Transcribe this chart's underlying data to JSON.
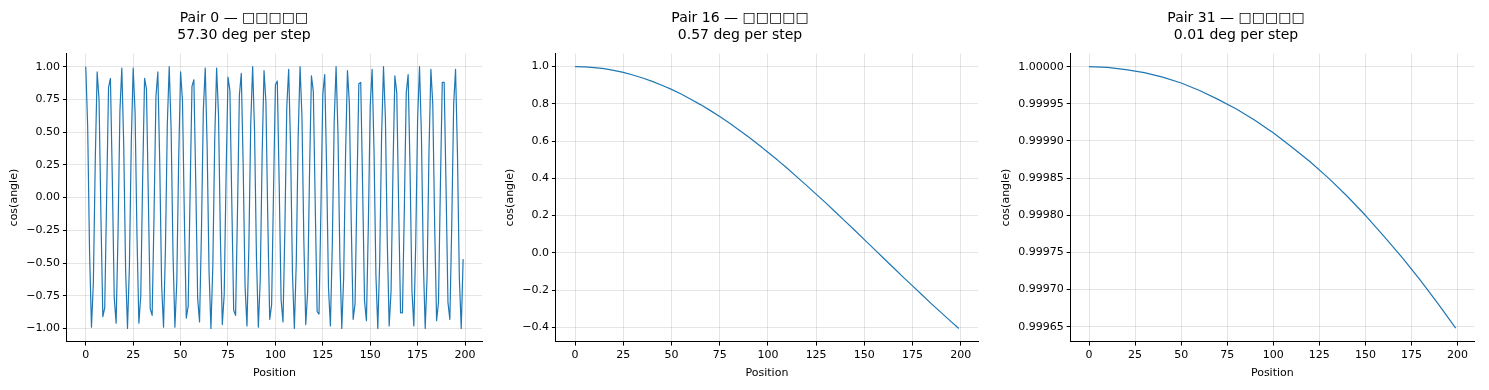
{
  "chart_data": [
    {
      "type": "line",
      "title": "Pair 0 — □□□□□",
      "subtitle": "57.30 deg per step",
      "xlabel": "Position",
      "ylabel": "cos(angle)",
      "color": "#1f77b4",
      "grid": true,
      "xlim": [
        -9.95,
        208.95
      ],
      "ylim": [
        -1.1,
        1.1
      ],
      "xticks": [
        0,
        25,
        50,
        75,
        100,
        125,
        150,
        175,
        200
      ],
      "yticks": [
        {
          "value": -1,
          "label": "−1.00"
        },
        {
          "value": -0.75,
          "label": "−0.75"
        },
        {
          "value": -0.5,
          "label": "−0.50"
        },
        {
          "value": -0.25,
          "label": "−0.25"
        },
        {
          "value": 0,
          "label": "0.00"
        },
        {
          "value": 0.25,
          "label": "0.25"
        },
        {
          "value": 0.5,
          "label": "0.50"
        },
        {
          "value": 0.75,
          "label": "0.75"
        },
        {
          "value": 1,
          "label": "1.00"
        }
      ],
      "x": [
        0,
        1,
        2,
        3,
        4,
        5,
        6,
        7,
        8,
        9,
        10,
        11,
        12,
        13,
        14,
        15,
        16,
        17,
        18,
        19,
        20,
        21,
        22,
        23,
        24,
        25,
        26,
        27,
        28,
        29,
        30,
        31,
        32,
        33,
        34,
        35,
        36,
        37,
        38,
        39,
        40,
        41,
        42,
        43,
        44,
        45,
        46,
        47,
        48,
        49,
        50,
        51,
        52,
        53,
        54,
        55,
        56,
        57,
        58,
        59,
        60,
        61,
        62,
        63,
        64,
        65,
        66,
        67,
        68,
        69,
        70,
        71,
        72,
        73,
        74,
        75,
        76,
        77,
        78,
        79,
        80,
        81,
        82,
        83,
        84,
        85,
        86,
        87,
        88,
        89,
        90,
        91,
        92,
        93,
        94,
        95,
        96,
        97,
        98,
        99,
        100,
        101,
        102,
        103,
        104,
        105,
        106,
        107,
        108,
        109,
        110,
        111,
        112,
        113,
        114,
        115,
        116,
        117,
        118,
        119,
        120,
        121,
        122,
        123,
        124,
        125,
        126,
        127,
        128,
        129,
        130,
        131,
        132,
        133,
        134,
        135,
        136,
        137,
        138,
        139,
        140,
        141,
        142,
        143,
        144,
        145,
        146,
        147,
        148,
        149,
        150,
        151,
        152,
        153,
        154,
        155,
        156,
        157,
        158,
        159,
        160,
        161,
        162,
        163,
        164,
        165,
        166,
        167,
        168,
        169,
        170,
        171,
        172,
        173,
        174,
        175,
        176,
        177,
        178,
        179,
        180,
        181,
        182,
        183,
        184,
        185,
        186,
        187,
        188,
        189,
        190,
        191,
        192,
        193,
        194,
        195,
        196,
        197,
        198,
        199
      ],
      "values": [
        1.0,
        0.54,
        -0.42,
        -0.99,
        -0.65,
        0.28,
        0.96,
        0.75,
        -0.15,
        -0.91,
        -0.84,
        0.0,
        0.84,
        0.91,
        0.14,
        -0.76,
        -0.96,
        -0.28,
        0.66,
        0.99,
        0.41,
        -0.55,
        -1.0,
        -0.53,
        0.42,
        0.99,
        0.65,
        -0.29,
        -0.96,
        -0.75,
        0.15,
        0.91,
        0.83,
        -0.01,
        -0.85,
        -0.9,
        -0.13,
        0.77,
        0.96,
        0.27,
        -0.67,
        -0.99,
        -0.4,
        0.56,
        1.0,
        0.53,
        -0.43,
        -0.99,
        -0.64,
        0.3,
        0.96,
        0.74,
        -0.16,
        -0.92,
        -0.83,
        0.02,
        0.85,
        0.9,
        0.12,
        -0.77,
        -0.95,
        -0.26,
        0.67,
        0.99,
        0.39,
        -0.56,
        -1.0,
        -0.52,
        0.44,
        0.99,
        0.63,
        -0.31,
        -0.97,
        -0.74,
        0.17,
        0.92,
        0.82,
        -0.03,
        -0.86,
        -0.9,
        -0.11,
        0.78,
        0.95,
        0.25,
        -0.68,
        -0.98,
        -0.38,
        0.57,
        1.0,
        0.51,
        -0.45,
        -0.99,
        -0.63,
        0.32,
        0.97,
        0.73,
        -0.18,
        -0.93,
        -0.82,
        0.04,
        0.86,
        0.89,
        0.1,
        -0.78,
        -0.95,
        -0.24,
        0.69,
        0.98,
        0.38,
        -0.58,
        -1.0,
        -0.5,
        0.46,
        1.0,
        0.62,
        -0.33,
        -0.97,
        -0.72,
        0.19,
        0.93,
        0.81,
        -0.05,
        -0.87,
        -0.89,
        -0.09,
        0.79,
        0.94,
        0.23,
        -0.69,
        -0.98,
        -0.37,
        0.58,
        1.0,
        0.49,
        -0.46,
        -1.0,
        -0.61,
        0.33,
        0.97,
        0.72,
        -0.2,
        -0.93,
        -0.81,
        0.06,
        0.87,
        0.88,
        0.08,
        -0.79,
        -0.94,
        -0.22,
        0.7,
        0.98,
        0.36,
        -0.59,
        -1.0,
        -0.49,
        0.47,
        1.0,
        0.61,
        -0.34,
        -0.98,
        -0.71,
        0.21,
        0.93,
        0.8,
        -0.07,
        -0.88,
        -0.88,
        -0.08,
        0.8,
        0.94,
        0.22,
        -0.71,
        -0.98,
        -0.35,
        0.6,
        1.0,
        0.48,
        -0.48,
        -1.0,
        -0.6,
        0.35,
        0.98,
        0.71,
        -0.22,
        -0.94,
        -0.8,
        0.08,
        0.88,
        0.88,
        0.07,
        -0.8,
        -0.93,
        -0.21,
        0.71,
        0.98,
        0.34,
        -0.61,
        -1.0,
        -0.47
      ]
    },
    {
      "type": "line",
      "title": "Pair 16 — □□□□□",
      "subtitle": "0.57 deg per step",
      "xlabel": "Position",
      "ylabel": "cos(angle)",
      "color": "#1f77b4",
      "grid": true,
      "xlim": [
        -9.95,
        208.95
      ],
      "ylim": [
        -0.477,
        1.07
      ],
      "xticks": [
        0,
        25,
        50,
        75,
        100,
        125,
        150,
        175,
        200
      ],
      "yticks": [
        {
          "value": -0.4,
          "label": "−0.4"
        },
        {
          "value": -0.2,
          "label": "−0.2"
        },
        {
          "value": 0,
          "label": "0.0"
        },
        0.2,
        0.4,
        0.6,
        0.8,
        {
          "value": 1,
          "label": "1.0"
        }
      ],
      "x": [
        0,
        5,
        10,
        15,
        20,
        25,
        30,
        35,
        40,
        45,
        50,
        55,
        60,
        65,
        70,
        75,
        80,
        85,
        90,
        95,
        100,
        105,
        110,
        115,
        120,
        125,
        130,
        135,
        140,
        145,
        150,
        155,
        160,
        165,
        170,
        175,
        180,
        185,
        190,
        195,
        199
      ],
      "values": [
        1,
        0.999,
        0.995,
        0.989,
        0.98,
        0.969,
        0.955,
        0.939,
        0.921,
        0.9,
        0.878,
        0.853,
        0.825,
        0.796,
        0.765,
        0.732,
        0.697,
        0.66,
        0.622,
        0.582,
        0.54,
        0.498,
        0.454,
        0.408,
        0.362,
        0.315,
        0.268,
        0.219,
        0.17,
        0.121,
        0.071,
        0.021,
        -0.029,
        -0.079,
        -0.129,
        -0.178,
        -0.227,
        -0.276,
        -0.323,
        -0.37,
        -0.407
      ]
    },
    {
      "type": "line",
      "title": "Pair 31 — □□□□□",
      "subtitle": "0.01 deg per step",
      "xlabel": "Position",
      "ylabel": "cos(angle)",
      "color": "#1f77b4",
      "grid": true,
      "xlim": [
        -9.95,
        208.95
      ],
      "ylim": [
        0.99963,
        1.0000176
      ],
      "xticks": [
        0,
        25,
        50,
        75,
        100,
        125,
        150,
        175,
        200
      ],
      "yticks": [
        {
          "value": 0.99965,
          "label": "0.99965"
        },
        {
          "value": 0.9997,
          "label": "0.99970"
        },
        {
          "value": 0.99975,
          "label": "0.99975"
        },
        {
          "value": 0.9998,
          "label": "0.99980"
        },
        {
          "value": 0.99985,
          "label": "0.99985"
        },
        {
          "value": 0.9999,
          "label": "0.99990"
        },
        {
          "value": 0.99995,
          "label": "0.99995"
        },
        {
          "value": 1,
          "label": "1.00000"
        }
      ],
      "x": [
        0,
        10,
        20,
        30,
        40,
        50,
        60,
        70,
        80,
        90,
        100,
        110,
        120,
        130,
        140,
        150,
        160,
        170,
        180,
        190,
        199
      ],
      "values": [
        1,
        0.999999,
        0.999996,
        0.999992,
        0.999986,
        0.999978,
        0.999968,
        0.999956,
        0.999943,
        0.999928,
        0.999911,
        0.999892,
        0.999872,
        0.99985,
        0.999826,
        0.9998,
        0.999772,
        0.999743,
        0.999712,
        0.999679,
        0.999648
      ]
    }
  ]
}
